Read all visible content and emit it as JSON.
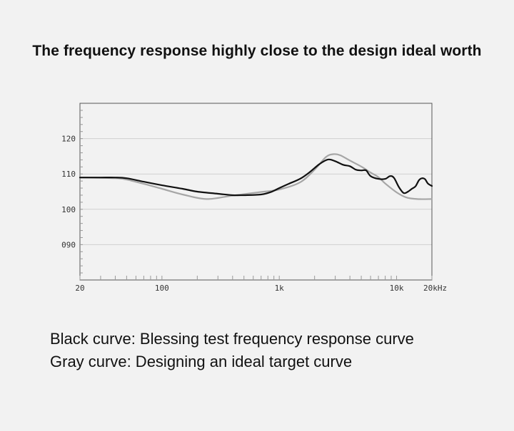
{
  "title": "The frequency response highly close to the design ideal worth",
  "captions": {
    "black": "Black curve: Blessing test frequency response curve",
    "gray": "Gray curve: Designing an ideal target curve"
  },
  "colors": {
    "black_curve": "#111111",
    "gray_curve": "#a6a6a6",
    "grid": "#cfcfcf",
    "axis": "#555555"
  },
  "chart_data": {
    "type": "line",
    "x_scale": "log",
    "xlim": [
      20,
      20000
    ],
    "ylim": [
      80,
      130
    ],
    "x_ticks": [
      {
        "value": 20,
        "label": "20"
      },
      {
        "value": 100,
        "label": "100"
      },
      {
        "value": 1000,
        "label": "1k"
      },
      {
        "value": 10000,
        "label": "10k"
      },
      {
        "value": 20000,
        "label": "20kHz"
      }
    ],
    "y_ticks": [
      {
        "value": 120,
        "label": "120"
      },
      {
        "value": 110,
        "label": "110"
      },
      {
        "value": 100,
        "label": "100"
      },
      {
        "value": 90,
        "label": "090"
      }
    ],
    "grid": true,
    "series": [
      {
        "color": "#a6a6a6",
        "x": [
          20,
          40,
          50,
          70,
          100,
          150,
          240,
          400,
          700,
          1000,
          1500,
          2000,
          2500,
          2900,
          3300,
          4000,
          5000,
          6000,
          7000,
          8000,
          10000,
          12000,
          15000,
          20000
        ],
        "y": [
          109,
          108.8,
          108.4,
          107.2,
          105.8,
          104.2,
          102.9,
          103.9,
          104.9,
          105.6,
          107.6,
          111.2,
          114.8,
          115.6,
          115.3,
          113.8,
          112.1,
          110.4,
          109.1,
          107.3,
          104.8,
          103.4,
          102.9,
          102.9
        ]
      },
      {
        "color": "#111111",
        "x": [
          20,
          30,
          40,
          50,
          70,
          100,
          150,
          200,
          300,
          400,
          500,
          700,
          850,
          1000,
          1200,
          1500,
          1800,
          2200,
          2600,
          3000,
          3500,
          4000,
          4500,
          5000,
          5500,
          6000,
          7000,
          8000,
          8800,
          9500,
          10500,
          11500,
          12500,
          13500,
          14500,
          15500,
          16500,
          17500,
          18500,
          20000
        ],
        "y": [
          109,
          109,
          109,
          108.8,
          107.8,
          106.8,
          105.8,
          105,
          104.4,
          104,
          104,
          104.2,
          104.9,
          106,
          107.2,
          108.6,
          110.4,
          112.8,
          114.1,
          113.6,
          112.6,
          112.2,
          111.2,
          111,
          111,
          109.4,
          108.6,
          108.6,
          109.4,
          108.9,
          106.2,
          104.6,
          105,
          105.8,
          106.5,
          108.2,
          108.8,
          108.5,
          107.3,
          106.6
        ]
      }
    ]
  }
}
